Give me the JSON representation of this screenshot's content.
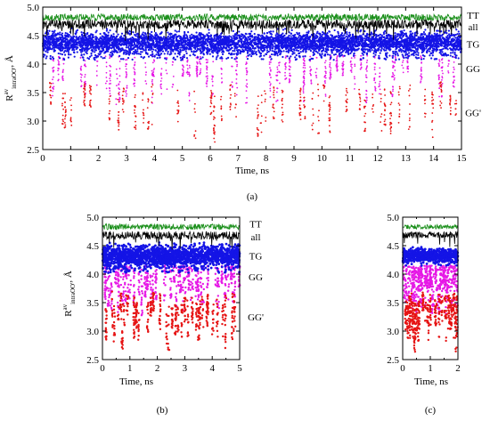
{
  "panels": {
    "a": {
      "caption": "(a)"
    },
    "b": {
      "caption": "(b)"
    },
    "c": {
      "caption": "(c)"
    }
  },
  "colors": {
    "TT": "#1a8f1a",
    "all": "#000000",
    "TG": "#1414e6",
    "GG": "#e619e6",
    "GGprime": "#e61414"
  },
  "chart_data": [
    {
      "id": "a",
      "type": "scatter",
      "xlabel": "Time, ns",
      "ylabel": "R^av intraOO', Å",
      "xlim": [
        0,
        15
      ],
      "ylim": [
        2.5,
        5.0
      ],
      "xticks": [
        "0",
        "1",
        "2",
        "3",
        "4",
        "5",
        "6",
        "7",
        "8",
        "9",
        "10",
        "11",
        "12",
        "13",
        "14",
        "15"
      ],
      "yticks": [
        "2.5",
        "3.0",
        "3.5",
        "4.0",
        "4.5",
        "5.0"
      ],
      "series": [
        {
          "name": "TT",
          "kind": "line",
          "mean": 4.82,
          "spread": 0.06
        },
        {
          "name": "all",
          "kind": "line",
          "mean": 4.7,
          "spread": 0.08
        },
        {
          "name": "TG",
          "kind": "band",
          "mean": 4.37,
          "spread": 0.2
        },
        {
          "name": "GG",
          "kind": "spikes",
          "mean": 3.85,
          "spread": 0.4
        },
        {
          "name": "GG'",
          "kind": "spikes",
          "mean": 3.0,
          "spread": 0.4
        }
      ],
      "labels": [
        {
          "text": "TT",
          "y": 4.86
        },
        {
          "text": "all",
          "y": 4.66
        },
        {
          "text": "TG",
          "y": 4.35
        },
        {
          "text": "GG",
          "y": 3.92
        },
        {
          "text": "GG'",
          "y": 3.15
        }
      ],
      "grid": false
    },
    {
      "id": "b",
      "type": "scatter",
      "xlabel": "Time, ns",
      "ylabel": "R^av intraOO', Å",
      "xlim": [
        0,
        5
      ],
      "ylim": [
        2.5,
        5.0
      ],
      "xticks": [
        "0",
        "0.5",
        "1",
        "1.5",
        "2",
        "2.5",
        "3",
        "3.5",
        "4",
        "4.5",
        "5"
      ],
      "xtick_labels_shown": [
        "0",
        "1",
        "2",
        "3",
        "4",
        "5"
      ],
      "yticks": [
        "2.5",
        "3.0",
        "3.5",
        "4.0",
        "4.5",
        "5.0"
      ],
      "series": [
        {
          "name": "TT",
          "kind": "line",
          "mean": 4.83,
          "spread": 0.05
        },
        {
          "name": "all",
          "kind": "line",
          "mean": 4.68,
          "spread": 0.07
        },
        {
          "name": "TG",
          "kind": "band",
          "mean": 4.32,
          "spread": 0.2
        },
        {
          "name": "GG",
          "kind": "spikes",
          "mean": 3.8,
          "spread": 0.45
        },
        {
          "name": "GG'",
          "kind": "spikes",
          "mean": 3.0,
          "spread": 0.45
        }
      ],
      "labels": [
        {
          "text": "TT",
          "y": 4.88
        },
        {
          "text": "all",
          "y": 4.66
        },
        {
          "text": "TG",
          "y": 4.32
        },
        {
          "text": "GG",
          "y": 3.95
        },
        {
          "text": "GG'",
          "y": 3.25
        }
      ],
      "grid": false
    },
    {
      "id": "c",
      "type": "scatter",
      "xlabel": "Time, ns",
      "ylabel": "",
      "xlim": [
        0,
        2
      ],
      "ylim": [
        2.5,
        5.0
      ],
      "xticks": [
        "0",
        "0.5",
        "1",
        "1.5",
        "2"
      ],
      "xtick_labels_shown": [
        "0",
        "1",
        "2"
      ],
      "yticks": [
        "2.5",
        "3.0",
        "3.5",
        "4.0",
        "4.5",
        "5.0"
      ],
      "series": [
        {
          "name": "TT",
          "kind": "line",
          "mean": 4.83,
          "spread": 0.04
        },
        {
          "name": "all",
          "kind": "line",
          "mean": 4.69,
          "spread": 0.06
        },
        {
          "name": "TG",
          "kind": "band",
          "mean": 4.33,
          "spread": 0.12
        },
        {
          "name": "GG",
          "kind": "spikes",
          "mean": 3.8,
          "spread": 0.4
        },
        {
          "name": "GG'",
          "kind": "spikes",
          "mean": 3.0,
          "spread": 0.45
        }
      ],
      "labels": [],
      "grid": false
    }
  ]
}
